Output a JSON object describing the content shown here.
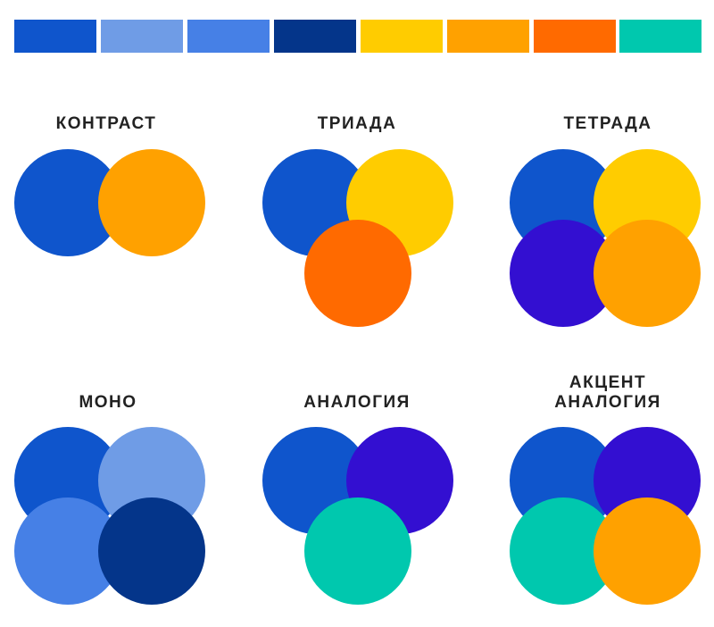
{
  "colors": {
    "royal_blue": "#0f55cc",
    "light_blue": "#6f9ce6",
    "medium_blue": "#4680e6",
    "navy": "#04358a",
    "yellow": "#ffcc00",
    "orange": "#ffa100",
    "dark_orange": "#ff6a00",
    "teal": "#00c8ae",
    "violet": "#330fd1"
  },
  "palette": [
    "royal_blue",
    "light_blue",
    "medium_blue",
    "navy",
    "yellow",
    "orange",
    "dark_orange",
    "teal"
  ],
  "schemes": [
    {
      "key": "contrast",
      "title_lines": [
        "КОНТРАСТ"
      ],
      "circles": [
        "royal_blue",
        "orange"
      ]
    },
    {
      "key": "triad",
      "title_lines": [
        "ТРИАДА"
      ],
      "circles": [
        "royal_blue",
        "yellow",
        "dark_orange"
      ]
    },
    {
      "key": "tetrad",
      "title_lines": [
        "ТЕТРАДА"
      ],
      "circles": [
        "royal_blue",
        "yellow",
        "violet",
        "orange"
      ]
    },
    {
      "key": "mono",
      "title_lines": [
        "МОНО"
      ],
      "circles": [
        "royal_blue",
        "light_blue",
        "medium_blue",
        "navy"
      ]
    },
    {
      "key": "analogy",
      "title_lines": [
        "АНАЛОГИЯ"
      ],
      "circles": [
        "royal_blue",
        "violet",
        "teal"
      ]
    },
    {
      "key": "accent-analogy",
      "title_lines": [
        "АКЦЕНТ",
        "АНАЛОГИЯ"
      ],
      "circles": [
        "royal_blue",
        "violet",
        "teal",
        "orange"
      ]
    }
  ]
}
